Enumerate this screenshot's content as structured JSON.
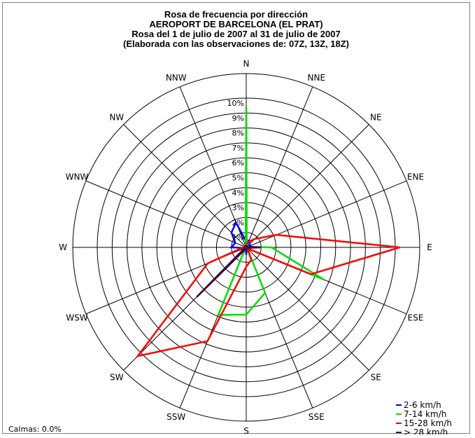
{
  "chart_data": {
    "type": "radar",
    "title_lines": [
      "Rosa de frecuencia por dirección",
      "AEROPORT DE BARCELONA (EL PRAT)",
      "Rosa del 1 de julio de 2007 al 31 de julio de 2007",
      "(Elaborada con las observaciones de: 07Z, 13Z, 18Z)"
    ],
    "directions": [
      "N",
      "NNE",
      "NE",
      "ENE",
      "E",
      "ESE",
      "SE",
      "SSE",
      "S",
      "SSW",
      "SW",
      "WSW",
      "W",
      "WNW",
      "NW",
      "NNW"
    ],
    "radial_ticks": [
      "1%",
      "2%",
      "3%",
      "4%",
      "5%",
      "6%",
      "7%",
      "8%",
      "9%",
      "10%"
    ],
    "rmax": 10,
    "series": [
      {
        "name": "2-6 km/h",
        "color": "#0000ff",
        "values": [
          0.4,
          0.5,
          0.3,
          0.3,
          0.1,
          0.1,
          0.1,
          0.1,
          0.5,
          0.1,
          0.1,
          0.1,
          1.0,
          0.8,
          1.4,
          1.8
        ]
      },
      {
        "name": "7-14 km/h",
        "color": "#00dd00",
        "values": [
          9.4,
          0.1,
          0.1,
          0.1,
          1.7,
          5.6,
          0.1,
          3.3,
          4.5,
          4.9,
          0.1,
          0.1,
          0.1,
          0.1,
          0.1,
          0.1
        ]
      },
      {
        "name": "15-28 km/h",
        "color": "#ff0000",
        "values": [
          0.2,
          0.4,
          0.8,
          2.2,
          10.3,
          4.7,
          0.1,
          0.9,
          1.3,
          6.8,
          10.3,
          2.8,
          0.2,
          0.1,
          0.1,
          0.1
        ]
      },
      {
        "name": "> 28 km/h",
        "color": "#400040",
        "values": [
          0.1,
          0.1,
          0.1,
          0.1,
          1.0,
          0.1,
          0.1,
          0.1,
          0.1,
          0.1,
          4.7,
          0.1,
          0.1,
          0.1,
          0.1,
          0.1
        ]
      }
    ],
    "calm": "Calmas: 0.0%",
    "grid": true,
    "legend_position": "bottom-right"
  }
}
